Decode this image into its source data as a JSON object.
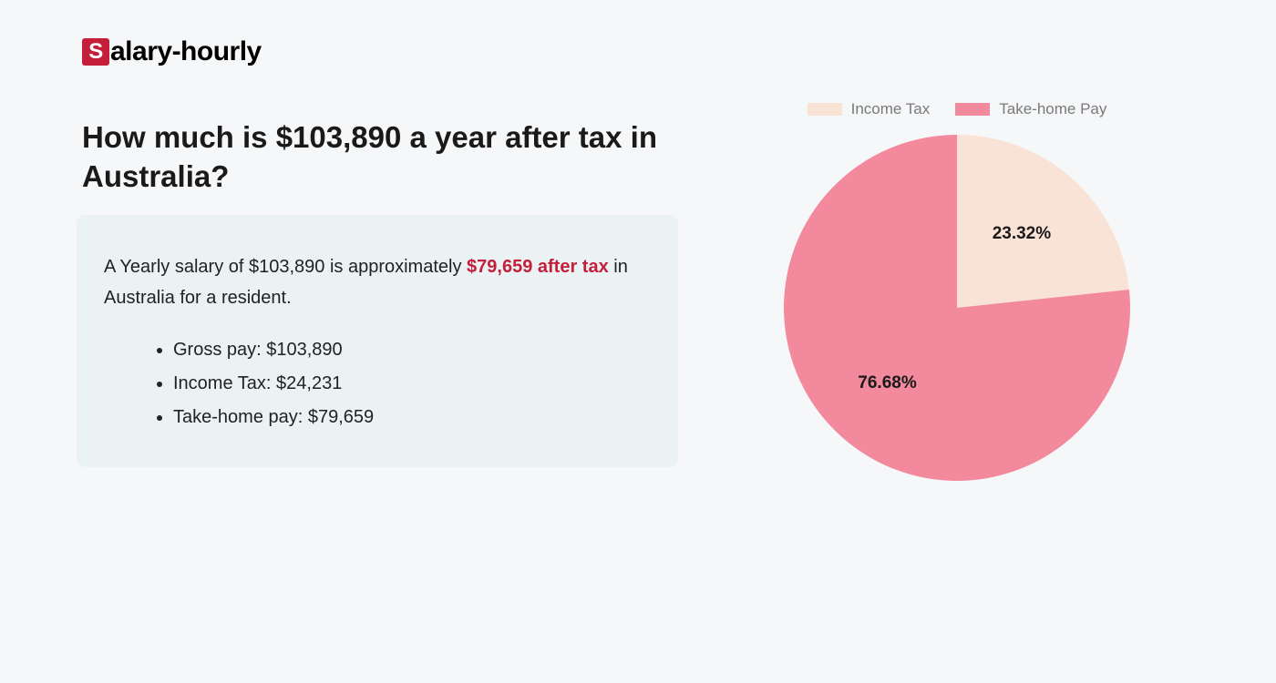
{
  "logo": {
    "letter": "S",
    "rest": "alary-hourly"
  },
  "heading": "How much is $103,890 a year after tax in Australia?",
  "summary": {
    "prefix": "A Yearly salary of $103,890 is approximately ",
    "highlight": "$79,659 after tax",
    "suffix": " in Australia for a resident."
  },
  "bullets": [
    "Gross pay: $103,890",
    "Income Tax: $24,231",
    "Take-home pay: $79,659"
  ],
  "chart": {
    "type": "pie",
    "background_color": "#f5f7f9",
    "slices": [
      {
        "label": "Income Tax",
        "value": 23.32,
        "percent_label": "23.32%",
        "color": "#f9e2d6"
      },
      {
        "label": "Take-home Pay",
        "value": 76.68,
        "percent_label": "76.68%",
        "color": "#f2899c"
      }
    ],
    "start_angle_deg": 0,
    "radius": 190,
    "label_fontsize": 19,
    "label_fontweight": 700,
    "label_color": "#1a1a1a",
    "legend_fontsize": 17,
    "legend_color": "#7a7a7a",
    "legend_swatch_width": 38,
    "legend_swatch_height": 14
  },
  "colors": {
    "page_bg": "#f5f7f9",
    "info_box_bg": "#eaf2f3",
    "brand_red": "#c41e3a",
    "text": "#1a1a1a"
  }
}
